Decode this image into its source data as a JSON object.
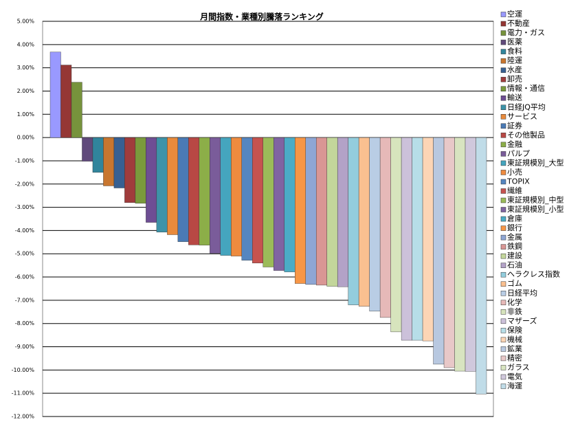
{
  "chart_data": {
    "type": "bar",
    "title": "月間指数・業種別騰落ランキング",
    "categories": [
      "空運",
      "不動産",
      "電力・ガス",
      "医薬",
      "食料",
      "陸運",
      "水産",
      "卸売",
      "情報・通信",
      "輸送",
      "日経JQ平均",
      "サービス",
      "証券",
      "その他製品",
      "金融",
      "パルプ",
      "東証規模別_大型",
      "小売",
      "TOPIX",
      "繊維",
      "東証規模別_中型",
      "東証規模別_小型",
      "倉庫",
      "銀行",
      "金属",
      "鉄鋼",
      "建設",
      "石油",
      "ヘラクレス指数",
      "ゴム",
      "日経平均",
      "化学",
      "非鉄",
      "マザーズ",
      "保険",
      "機械",
      "鉱業",
      "精密",
      "ガラス",
      "電気",
      "海運"
    ],
    "values": [
      3.68,
      3.12,
      2.38,
      -1.02,
      -1.5,
      -2.08,
      -2.17,
      -2.8,
      -2.83,
      -3.65,
      -4.07,
      -4.18,
      -4.48,
      -4.62,
      -4.63,
      -4.98,
      -5.07,
      -5.1,
      -5.28,
      -5.4,
      -5.57,
      -5.72,
      -5.78,
      -6.28,
      -6.32,
      -6.35,
      -6.4,
      -6.42,
      -7.2,
      -7.26,
      -7.47,
      -7.74,
      -8.36,
      -8.72,
      -8.72,
      -8.75,
      -9.75,
      -9.9,
      -10.05,
      -10.06,
      -11.03
    ],
    "colors": [
      "#9999ff",
      "#953735",
      "#77933c",
      "#604a7b",
      "#31859c",
      "#c8762f",
      "#376092",
      "#a03c3c",
      "#7a9a3c",
      "#6e4e94",
      "#3d93a8",
      "#e88a3c",
      "#4a7ab5",
      "#b84844",
      "#8cae48",
      "#7a5c9a",
      "#45a5be",
      "#ee8b3f",
      "#5586c0",
      "#c6534f",
      "#9bbb59",
      "#8064a2",
      "#4bacc6",
      "#f79646",
      "#8ea6d4",
      "#d99694",
      "#c3d69b",
      "#b3a2c7",
      "#93cddd",
      "#fac090",
      "#b9cde5",
      "#e6b9b8",
      "#d7e4bd",
      "#ccc1da",
      "#b7dee8",
      "#fcd5b5",
      "#b8c8e0",
      "#e8c8c8",
      "#d8e4c0",
      "#d0c8dc",
      "#c0dce8"
    ],
    "ylim": [
      -12,
      5
    ],
    "yticks": [
      {
        "value": 5,
        "label": "5.00%"
      },
      {
        "value": 4,
        "label": "4.00%"
      },
      {
        "value": 3,
        "label": "3.00%"
      },
      {
        "value": 2,
        "label": "2.00%"
      },
      {
        "value": 1,
        "label": "1.00%"
      },
      {
        "value": 0,
        "label": "0.00%"
      },
      {
        "value": -1,
        "label": "-1.00%"
      },
      {
        "value": -2,
        "label": "-2.00%"
      },
      {
        "value": -3,
        "label": "-3.00%"
      },
      {
        "value": -4,
        "label": "-4.00%"
      },
      {
        "value": -5,
        "label": "-5.00%"
      },
      {
        "value": -6,
        "label": "-6.00%"
      },
      {
        "value": -7,
        "label": "-7.00%"
      },
      {
        "value": -8,
        "label": "-8.00%"
      },
      {
        "value": -9,
        "label": "-9.00%"
      },
      {
        "value": -10,
        "label": "-10.00%"
      },
      {
        "value": -11,
        "label": "-11.00%"
      },
      {
        "value": -12,
        "label": "-12.00%"
      }
    ],
    "grid": true,
    "legend": "right"
  }
}
